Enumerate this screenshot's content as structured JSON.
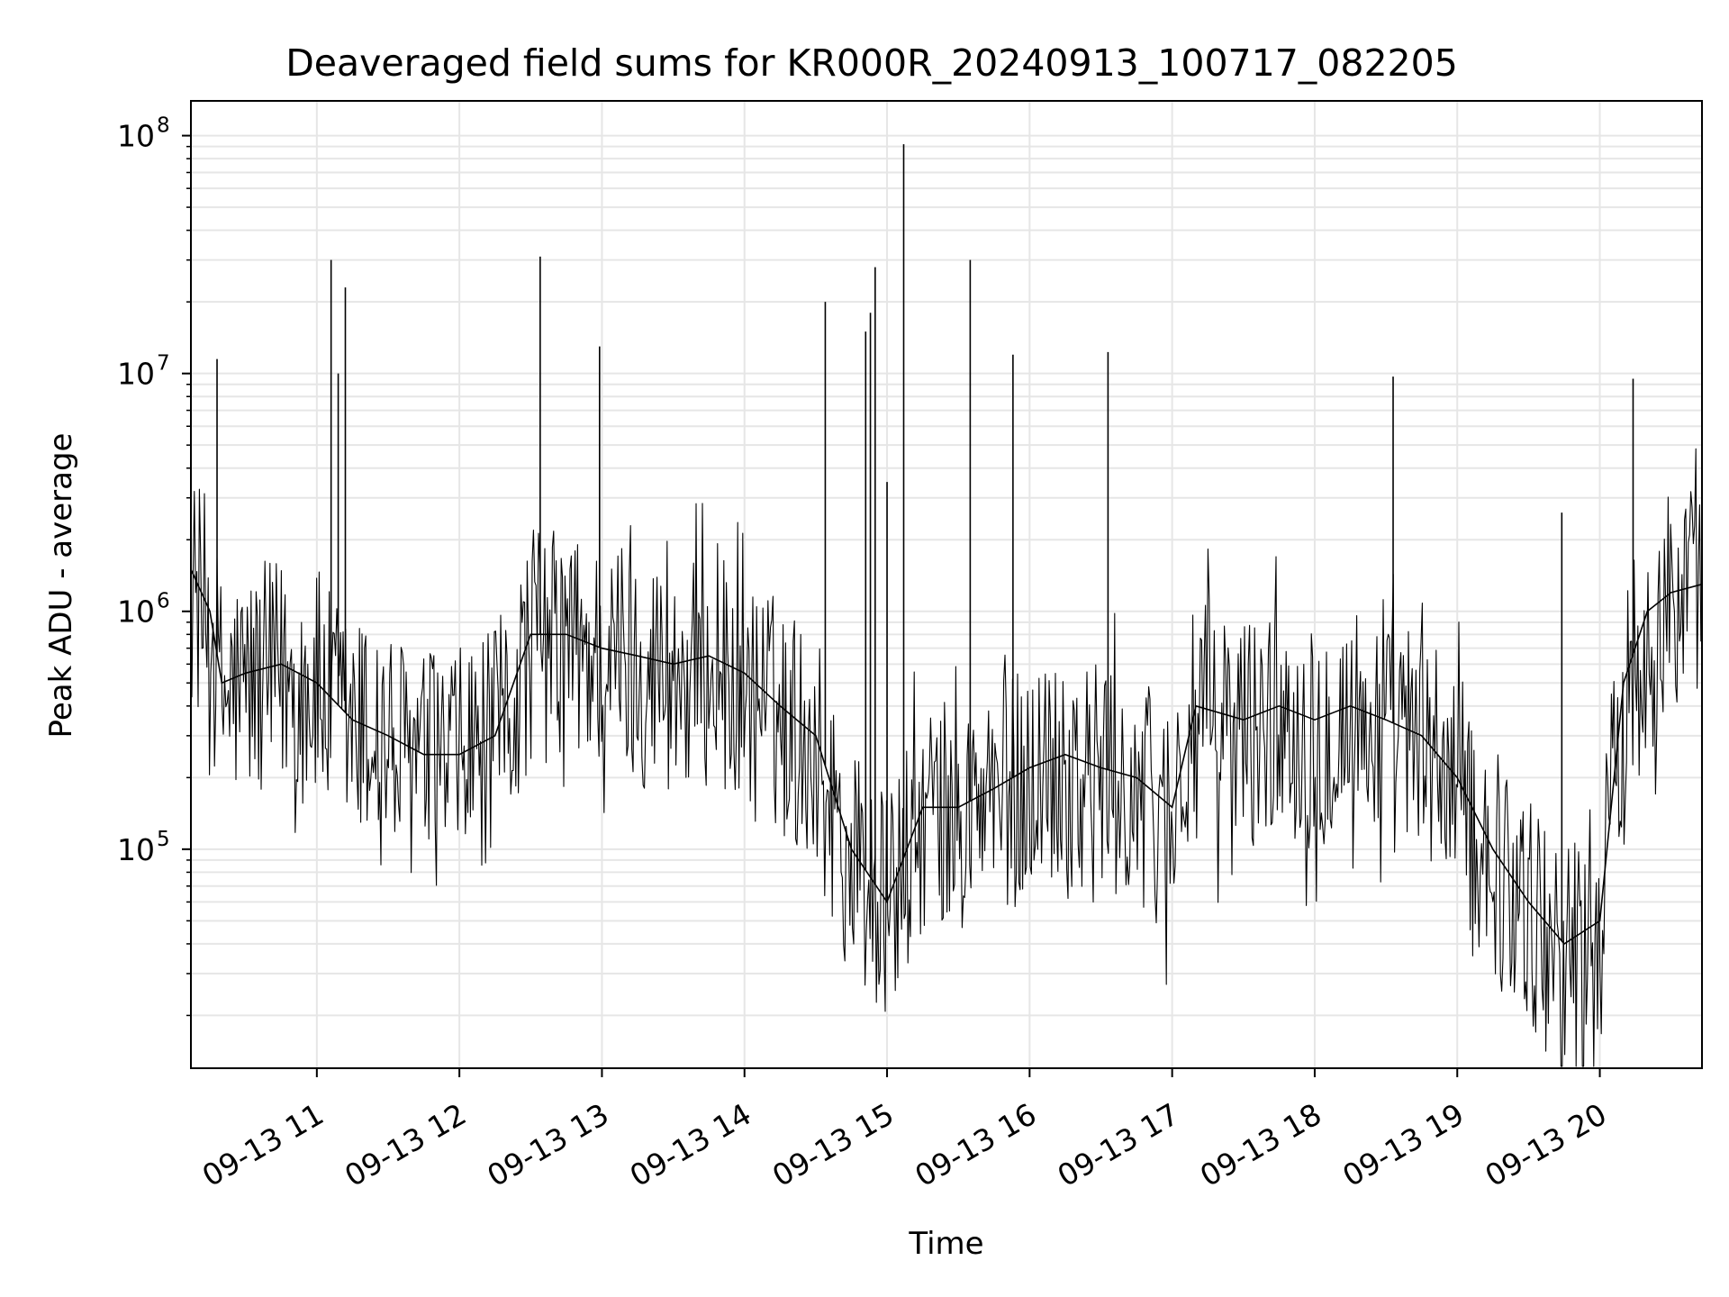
{
  "chart_data": {
    "type": "line",
    "title": "Deaveraged field sums for KR000R_20240913_100717_082205",
    "xlabel": "Time",
    "ylabel": "Peak ADU - average",
    "y_scale": "log",
    "grid": true,
    "grid_minor": true,
    "line_color": "#000000",
    "grid_color": "#e6e6e6",
    "x_range": [
      "2024-09-13 10:07",
      "2024-09-13 20:43"
    ],
    "ylim": [
      12000,
      140000000
    ],
    "x_ticks": [
      "09-13 11",
      "09-13 12",
      "09-13 13",
      "09-13 14",
      "09-13 15",
      "09-13 16",
      "09-13 17",
      "09-13 18",
      "09-13 19",
      "09-13 20"
    ],
    "x_tick_times": [
      "2024-09-13 11:00",
      "2024-09-13 12:00",
      "2024-09-13 13:00",
      "2024-09-13 14:00",
      "2024-09-13 15:00",
      "2024-09-13 16:00",
      "2024-09-13 17:00",
      "2024-09-13 18:00",
      "2024-09-13 19:00",
      "2024-09-13 20:00"
    ],
    "y_ticks": [
      {
        "value": 100000,
        "base": "10",
        "exp": "5"
      },
      {
        "value": 1000000,
        "base": "10",
        "exp": "6"
      },
      {
        "value": 10000000,
        "base": "10",
        "exp": "7"
      },
      {
        "value": 100000000,
        "base": "10",
        "exp": "8"
      }
    ],
    "series": [
      {
        "x": [
          "2024-09-13 10:07",
          "2024-09-13 10:15",
          "2024-09-13 10:20",
          "2024-09-13 10:30",
          "2024-09-13 10:45",
          "2024-09-13 11:00",
          "2024-09-13 11:15",
          "2024-09-13 11:30",
          "2024-09-13 11:45",
          "2024-09-13 12:00",
          "2024-09-13 12:15",
          "2024-09-13 12:30",
          "2024-09-13 12:45",
          "2024-09-13 13:00",
          "2024-09-13 13:15",
          "2024-09-13 13:30",
          "2024-09-13 13:45",
          "2024-09-13 14:00",
          "2024-09-13 14:15",
          "2024-09-13 14:30",
          "2024-09-13 14:45",
          "2024-09-13 15:00",
          "2024-09-13 15:15",
          "2024-09-13 15:30",
          "2024-09-13 15:45",
          "2024-09-13 16:00",
          "2024-09-13 16:15",
          "2024-09-13 16:30",
          "2024-09-13 16:45",
          "2024-09-13 17:00",
          "2024-09-13 17:10",
          "2024-09-13 17:30",
          "2024-09-13 17:45",
          "2024-09-13 18:00",
          "2024-09-13 18:15",
          "2024-09-13 18:30",
          "2024-09-13 18:45",
          "2024-09-13 19:00",
          "2024-09-13 19:15",
          "2024-09-13 19:30",
          "2024-09-13 19:45",
          "2024-09-13 20:00",
          "2024-09-13 20:10",
          "2024-09-13 20:20",
          "2024-09-13 20:30",
          "2024-09-13 20:43"
        ],
        "y": [
          1500000,
          1000000,
          500000,
          550000,
          600000,
          500000,
          350000,
          300000,
          250000,
          250000,
          300000,
          800000,
          800000,
          700000,
          650000,
          600000,
          650000,
          550000,
          400000,
          300000,
          100000,
          60000,
          150000,
          150000,
          180000,
          220000,
          250000,
          220000,
          200000,
          150000,
          400000,
          350000,
          400000,
          350000,
          400000,
          350000,
          300000,
          200000,
          100000,
          60000,
          40000,
          50000,
          500000,
          1000000,
          1200000,
          1300000
        ]
      }
    ],
    "spikes": [
      {
        "x": "2024-09-13 10:18",
        "y": 11500000
      },
      {
        "x": "2024-09-13 11:06",
        "y": 30000000
      },
      {
        "x": "2024-09-13 11:09",
        "y": 10000000
      },
      {
        "x": "2024-09-13 11:12",
        "y": 23000000
      },
      {
        "x": "2024-09-13 12:34",
        "y": 31000000
      },
      {
        "x": "2024-09-13 12:59",
        "y": 13000000
      },
      {
        "x": "2024-09-13 14:34",
        "y": 20000000
      },
      {
        "x": "2024-09-13 14:51",
        "y": 15000000
      },
      {
        "x": "2024-09-13 14:53",
        "y": 18000000
      },
      {
        "x": "2024-09-13 14:55",
        "y": 28000000
      },
      {
        "x": "2024-09-13 15:00",
        "y": 3500000
      },
      {
        "x": "2024-09-13 15:07",
        "y": 92000000
      },
      {
        "x": "2024-09-13 15:35",
        "y": 30000000
      },
      {
        "x": "2024-09-13 15:53",
        "y": 12000000
      },
      {
        "x": "2024-09-13 16:33",
        "y": 12300000
      },
      {
        "x": "2024-09-13 18:33",
        "y": 9700000
      },
      {
        "x": "2024-09-13 19:44",
        "y": 2600000
      },
      {
        "x": "2024-09-13 20:14",
        "y": 9500000
      }
    ]
  }
}
